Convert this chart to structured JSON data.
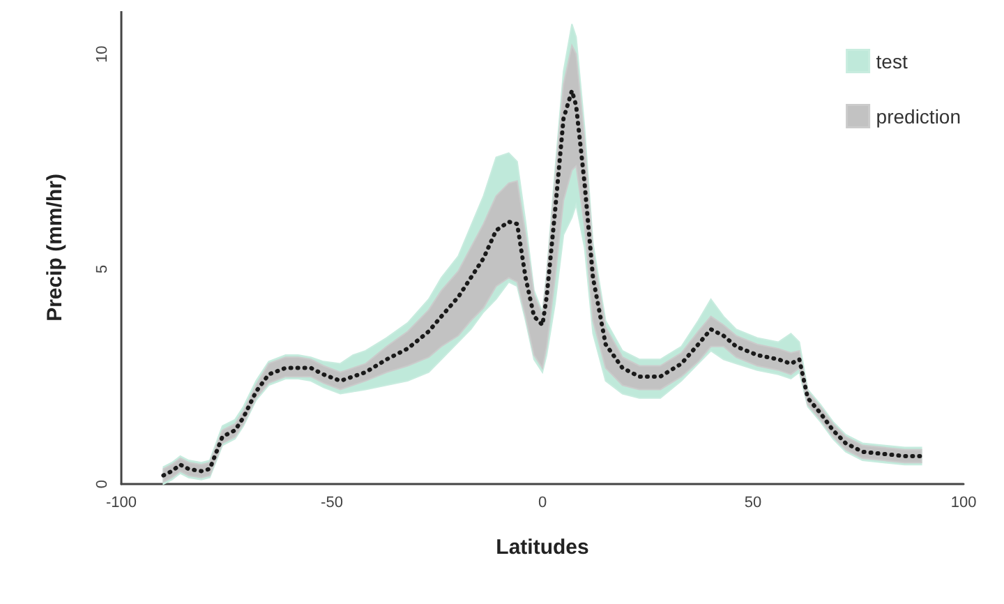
{
  "chart_data": {
    "type": "line",
    "xlabel": "Latitudes",
    "ylabel": "Precip (mm/hr)",
    "x": [
      -90,
      -88,
      -86,
      -84,
      -81,
      -79,
      -76,
      -73,
      -71,
      -68,
      -65,
      -61,
      -58,
      -55,
      -52,
      -48,
      -45,
      -42,
      -37,
      -32,
      -27,
      -24,
      -20,
      -17,
      -14,
      -11,
      -8,
      -6,
      -4,
      -2,
      0,
      1,
      3,
      5,
      7,
      8,
      10,
      12,
      15,
      19,
      23,
      28,
      33,
      37,
      40,
      43,
      46,
      51,
      56,
      59,
      61,
      63,
      66,
      69,
      72,
      76,
      81,
      86,
      90
    ],
    "series": [
      {
        "name": "test",
        "color": "#bfe9da",
        "values": [
          null,
          null,
          null,
          null,
          null,
          null,
          null,
          null,
          null,
          null,
          null,
          null,
          null,
          null,
          null,
          null,
          null,
          null,
          null,
          null,
          null,
          null,
          null,
          null,
          null,
          null,
          null,
          null,
          null,
          null,
          null,
          null,
          null,
          null,
          null,
          null,
          null,
          null,
          null,
          null,
          null,
          null,
          null,
          null,
          null,
          null,
          null,
          null,
          null,
          null,
          null,
          null,
          null,
          null,
          null,
          null,
          null,
          null,
          null
        ],
        "lower": [
          0.0,
          0.1,
          0.25,
          0.15,
          0.1,
          0.15,
          0.9,
          1.05,
          1.35,
          1.95,
          2.3,
          2.45,
          2.45,
          2.4,
          2.25,
          2.1,
          2.15,
          2.2,
          2.3,
          2.4,
          2.6,
          2.9,
          3.3,
          3.6,
          4.0,
          4.3,
          4.7,
          4.6,
          3.8,
          2.9,
          2.6,
          3.0,
          4.2,
          5.8,
          6.2,
          6.5,
          5.5,
          3.5,
          2.4,
          2.1,
          2.0,
          2.0,
          2.4,
          2.8,
          3.1,
          2.9,
          2.8,
          2.65,
          2.55,
          2.45,
          2.6,
          1.8,
          1.45,
          1.05,
          0.75,
          0.55,
          0.5,
          0.45,
          0.45
        ],
        "upper": [
          0.4,
          0.5,
          0.65,
          0.55,
          0.5,
          0.55,
          1.35,
          1.5,
          1.8,
          2.4,
          2.85,
          3.0,
          3.0,
          2.95,
          2.85,
          2.8,
          3.0,
          3.1,
          3.4,
          3.75,
          4.3,
          4.8,
          5.3,
          6.0,
          6.7,
          7.6,
          7.7,
          7.5,
          6.1,
          4.5,
          4.0,
          4.9,
          7.3,
          9.6,
          10.7,
          10.4,
          8.3,
          5.6,
          3.8,
          3.1,
          2.9,
          2.9,
          3.2,
          3.8,
          4.3,
          3.9,
          3.6,
          3.4,
          3.3,
          3.5,
          3.3,
          2.2,
          1.85,
          1.45,
          1.15,
          0.95,
          0.9,
          0.85,
          0.85
        ]
      },
      {
        "name": "prediction",
        "color": "#c2c2c2",
        "values": [
          null,
          null,
          null,
          null,
          null,
          null,
          null,
          null,
          null,
          null,
          null,
          null,
          null,
          null,
          null,
          null,
          null,
          null,
          null,
          null,
          null,
          null,
          null,
          null,
          null,
          null,
          null,
          null,
          null,
          null,
          null,
          null,
          null,
          null,
          null,
          null,
          null,
          null,
          null,
          null,
          null,
          null,
          null,
          null,
          null,
          null,
          null,
          null,
          null,
          null,
          null,
          null,
          null,
          null,
          null,
          null,
          null,
          null,
          null
        ],
        "lower": [
          0.05,
          0.15,
          0.3,
          0.2,
          0.15,
          0.2,
          0.95,
          1.1,
          1.4,
          2.0,
          2.35,
          2.5,
          2.5,
          2.5,
          2.35,
          2.2,
          2.3,
          2.4,
          2.6,
          2.75,
          2.95,
          3.2,
          3.45,
          3.8,
          4.1,
          4.6,
          4.8,
          4.7,
          3.9,
          3.0,
          2.7,
          3.2,
          4.8,
          6.6,
          7.3,
          7.4,
          6.0,
          3.8,
          2.7,
          2.3,
          2.2,
          2.2,
          2.5,
          2.85,
          3.2,
          3.2,
          2.95,
          2.75,
          2.65,
          2.55,
          2.7,
          1.85,
          1.5,
          1.1,
          0.8,
          0.6,
          0.55,
          0.5,
          0.5
        ],
        "upper": [
          0.35,
          0.45,
          0.6,
          0.5,
          0.45,
          0.5,
          1.25,
          1.4,
          1.7,
          2.3,
          2.8,
          2.95,
          2.95,
          2.9,
          2.75,
          2.6,
          2.7,
          2.8,
          3.2,
          3.55,
          4.05,
          4.5,
          4.95,
          5.5,
          6.05,
          6.7,
          7.0,
          7.05,
          5.8,
          4.4,
          3.95,
          4.8,
          7.1,
          9.3,
          10.2,
          10.0,
          8.0,
          5.4,
          3.65,
          2.95,
          2.75,
          2.75,
          3.05,
          3.55,
          3.9,
          3.7,
          3.45,
          3.25,
          3.15,
          3.05,
          3.1,
          2.15,
          1.8,
          1.4,
          1.1,
          0.9,
          0.85,
          0.8,
          0.8
        ]
      },
      {
        "color": "#1a1a1a",
        "line_style": "dotted",
        "values": [
          0.2,
          0.3,
          0.45,
          0.35,
          0.3,
          0.35,
          1.1,
          1.25,
          1.55,
          2.15,
          2.55,
          2.7,
          2.7,
          2.7,
          2.55,
          2.4,
          2.5,
          2.6,
          2.9,
          3.15,
          3.55,
          3.9,
          4.35,
          4.8,
          5.25,
          5.9,
          6.1,
          6.05,
          4.8,
          3.9,
          3.7,
          4.35,
          6.35,
          8.5,
          9.15,
          8.8,
          7.0,
          4.8,
          3.25,
          2.7,
          2.5,
          2.5,
          2.8,
          3.25,
          3.6,
          3.45,
          3.2,
          3.0,
          2.9,
          2.8,
          2.9,
          2.0,
          1.65,
          1.25,
          0.95,
          0.75,
          0.7,
          0.65,
          0.65
        ]
      }
    ],
    "xlim": [
      -100,
      100
    ],
    "xticks": [
      -100,
      -50,
      0,
      50,
      100
    ],
    "ylim": [
      0,
      11
    ],
    "yticks": [
      0,
      5,
      10
    ],
    "grid": false,
    "legend": "top right",
    "marker": "none"
  }
}
